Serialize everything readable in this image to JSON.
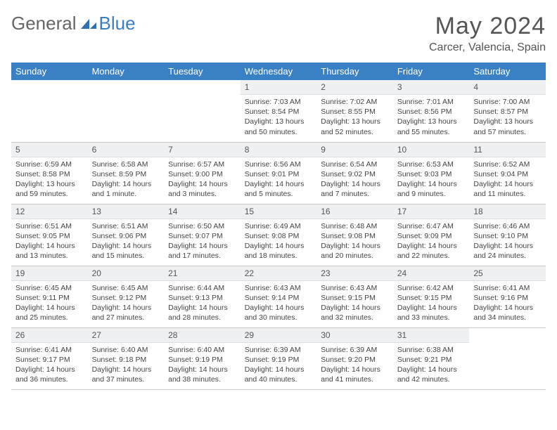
{
  "logo": {
    "part1": "General",
    "part2": "Blue"
  },
  "title": "May 2024",
  "location": "Carcer, Valencia, Spain",
  "columns": [
    "Sunday",
    "Monday",
    "Tuesday",
    "Wednesday",
    "Thursday",
    "Friday",
    "Saturday"
  ],
  "styling": {
    "header_bg": "#3a80c4",
    "header_fg": "#ffffff",
    "daynum_bg": "#eef0f2",
    "border_color": "#c8c8c8",
    "title_fontsize": 34,
    "th_fontsize": 13,
    "details_fontsize": 10.5,
    "body_width": 792,
    "body_height": 612
  },
  "weeks": [
    [
      null,
      null,
      null,
      {
        "n": "1",
        "sunrise": "7:03 AM",
        "sunset": "8:54 PM",
        "daylight": "13 hours and 50 minutes."
      },
      {
        "n": "2",
        "sunrise": "7:02 AM",
        "sunset": "8:55 PM",
        "daylight": "13 hours and 52 minutes."
      },
      {
        "n": "3",
        "sunrise": "7:01 AM",
        "sunset": "8:56 PM",
        "daylight": "13 hours and 55 minutes."
      },
      {
        "n": "4",
        "sunrise": "7:00 AM",
        "sunset": "8:57 PM",
        "daylight": "13 hours and 57 minutes."
      }
    ],
    [
      {
        "n": "5",
        "sunrise": "6:59 AM",
        "sunset": "8:58 PM",
        "daylight": "13 hours and 59 minutes."
      },
      {
        "n": "6",
        "sunrise": "6:58 AM",
        "sunset": "8:59 PM",
        "daylight": "14 hours and 1 minute."
      },
      {
        "n": "7",
        "sunrise": "6:57 AM",
        "sunset": "9:00 PM",
        "daylight": "14 hours and 3 minutes."
      },
      {
        "n": "8",
        "sunrise": "6:56 AM",
        "sunset": "9:01 PM",
        "daylight": "14 hours and 5 minutes."
      },
      {
        "n": "9",
        "sunrise": "6:54 AM",
        "sunset": "9:02 PM",
        "daylight": "14 hours and 7 minutes."
      },
      {
        "n": "10",
        "sunrise": "6:53 AM",
        "sunset": "9:03 PM",
        "daylight": "14 hours and 9 minutes."
      },
      {
        "n": "11",
        "sunrise": "6:52 AM",
        "sunset": "9:04 PM",
        "daylight": "14 hours and 11 minutes."
      }
    ],
    [
      {
        "n": "12",
        "sunrise": "6:51 AM",
        "sunset": "9:05 PM",
        "daylight": "14 hours and 13 minutes."
      },
      {
        "n": "13",
        "sunrise": "6:51 AM",
        "sunset": "9:06 PM",
        "daylight": "14 hours and 15 minutes."
      },
      {
        "n": "14",
        "sunrise": "6:50 AM",
        "sunset": "9:07 PM",
        "daylight": "14 hours and 17 minutes."
      },
      {
        "n": "15",
        "sunrise": "6:49 AM",
        "sunset": "9:08 PM",
        "daylight": "14 hours and 18 minutes."
      },
      {
        "n": "16",
        "sunrise": "6:48 AM",
        "sunset": "9:08 PM",
        "daylight": "14 hours and 20 minutes."
      },
      {
        "n": "17",
        "sunrise": "6:47 AM",
        "sunset": "9:09 PM",
        "daylight": "14 hours and 22 minutes."
      },
      {
        "n": "18",
        "sunrise": "6:46 AM",
        "sunset": "9:10 PM",
        "daylight": "14 hours and 24 minutes."
      }
    ],
    [
      {
        "n": "19",
        "sunrise": "6:45 AM",
        "sunset": "9:11 PM",
        "daylight": "14 hours and 25 minutes."
      },
      {
        "n": "20",
        "sunrise": "6:45 AM",
        "sunset": "9:12 PM",
        "daylight": "14 hours and 27 minutes."
      },
      {
        "n": "21",
        "sunrise": "6:44 AM",
        "sunset": "9:13 PM",
        "daylight": "14 hours and 28 minutes."
      },
      {
        "n": "22",
        "sunrise": "6:43 AM",
        "sunset": "9:14 PM",
        "daylight": "14 hours and 30 minutes."
      },
      {
        "n": "23",
        "sunrise": "6:43 AM",
        "sunset": "9:15 PM",
        "daylight": "14 hours and 32 minutes."
      },
      {
        "n": "24",
        "sunrise": "6:42 AM",
        "sunset": "9:15 PM",
        "daylight": "14 hours and 33 minutes."
      },
      {
        "n": "25",
        "sunrise": "6:41 AM",
        "sunset": "9:16 PM",
        "daylight": "14 hours and 34 minutes."
      }
    ],
    [
      {
        "n": "26",
        "sunrise": "6:41 AM",
        "sunset": "9:17 PM",
        "daylight": "14 hours and 36 minutes."
      },
      {
        "n": "27",
        "sunrise": "6:40 AM",
        "sunset": "9:18 PM",
        "daylight": "14 hours and 37 minutes."
      },
      {
        "n": "28",
        "sunrise": "6:40 AM",
        "sunset": "9:19 PM",
        "daylight": "14 hours and 38 minutes."
      },
      {
        "n": "29",
        "sunrise": "6:39 AM",
        "sunset": "9:19 PM",
        "daylight": "14 hours and 40 minutes."
      },
      {
        "n": "30",
        "sunrise": "6:39 AM",
        "sunset": "9:20 PM",
        "daylight": "14 hours and 41 minutes."
      },
      {
        "n": "31",
        "sunrise": "6:38 AM",
        "sunset": "9:21 PM",
        "daylight": "14 hours and 42 minutes."
      },
      null
    ]
  ],
  "labels": {
    "sunrise": "Sunrise:",
    "sunset": "Sunset:",
    "daylight": "Daylight:"
  }
}
